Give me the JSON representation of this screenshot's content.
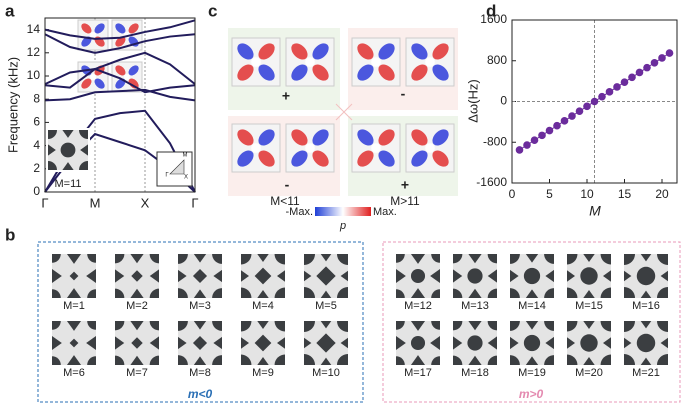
{
  "panel_labels": [
    "a",
    "b",
    "c",
    "d"
  ],
  "chart_data": [
    {
      "type": "line",
      "ylabel": "Frequency (kHz)",
      "x": [
        0,
        0.5,
        1,
        1.5,
        2,
        2.5,
        3
      ],
      "xlim": [
        0,
        3
      ],
      "xticks": [
        {
          "value": 0,
          "label": "Γ"
        },
        {
          "value": 1,
          "label": "M"
        },
        {
          "value": 2,
          "label": "X"
        },
        {
          "value": 3,
          "label": "Γ"
        }
      ],
      "ylim": [
        0,
        15
      ],
      "yticks": [
        0,
        2,
        4,
        6,
        8,
        10,
        12,
        14
      ],
      "xgrid": true,
      "series": [
        {
          "color": "#221c5c",
          "values": [
            0,
            2.8,
            5.0,
            4.3,
            3.6,
            2.0,
            0
          ]
        },
        {
          "color": "#221c5c",
          "values": [
            0,
            3.6,
            6.3,
            6.8,
            7.0,
            4.2,
            0
          ]
        },
        {
          "color": "#221c5c",
          "values": [
            7.9,
            8.0,
            8.6,
            8.7,
            8.8,
            8.2,
            7.9
          ]
        },
        {
          "color": "#221c5c",
          "values": [
            9.2,
            9.0,
            10.6,
            9.8,
            8.6,
            9.0,
            9.2
          ]
        },
        {
          "color": "#221c5c",
          "values": [
            9.3,
            10.3,
            10.6,
            11.4,
            12.0,
            11.0,
            9.3
          ]
        },
        {
          "color": "#221c5c",
          "values": [
            13.6,
            12.5,
            12.0,
            12.4,
            13.0,
            13.4,
            13.6
          ]
        },
        {
          "color": "#221c5c",
          "values": [
            14.0,
            13.5,
            13.2,
            13.3,
            13.8,
            14.2,
            14.8
          ]
        }
      ],
      "inset_label": "M=11",
      "bz_labels": [
        "Γ",
        "X",
        "M"
      ]
    },
    {
      "type": "scatter",
      "ylabel": "Δω(Hz)",
      "xlabel": "M",
      "x": [
        1,
        2,
        3,
        4,
        5,
        6,
        7,
        8,
        9,
        10,
        11,
        12,
        13,
        14,
        15,
        16,
        17,
        18,
        19,
        20,
        21
      ],
      "values": [
        -950,
        -855,
        -760,
        -665,
        -570,
        -475,
        -380,
        -285,
        -190,
        -95,
        0,
        95,
        190,
        285,
        380,
        475,
        570,
        665,
        760,
        855,
        950
      ],
      "xlim": [
        0,
        22
      ],
      "xticks": [
        0,
        5,
        10,
        15,
        20
      ],
      "ylim": [
        -1600,
        1600
      ],
      "yticks": [
        -1600,
        -800,
        0,
        800,
        1600
      ],
      "reference_lines": {
        "x": 11,
        "y": 0
      },
      "color": "#6b2c9c"
    }
  ],
  "unit_cells": {
    "group_labels": [
      "m<0",
      "m>0"
    ],
    "cells": [
      "M=1",
      "M=2",
      "M=3",
      "M=4",
      "M=5",
      "M=6",
      "M=7",
      "M=8",
      "M=9",
      "M=10",
      "M=12",
      "M=13",
      "M=14",
      "M=15",
      "M=16",
      "M=17",
      "M=18",
      "M=19",
      "M=20",
      "M=21"
    ]
  },
  "field_maps": {
    "signs": [
      "+",
      "-",
      "-",
      "+"
    ],
    "cases": [
      "M<11",
      "M>11"
    ],
    "colorbar": {
      "min_label": "-Max.",
      "max_label": "Max.",
      "title": "p"
    }
  }
}
